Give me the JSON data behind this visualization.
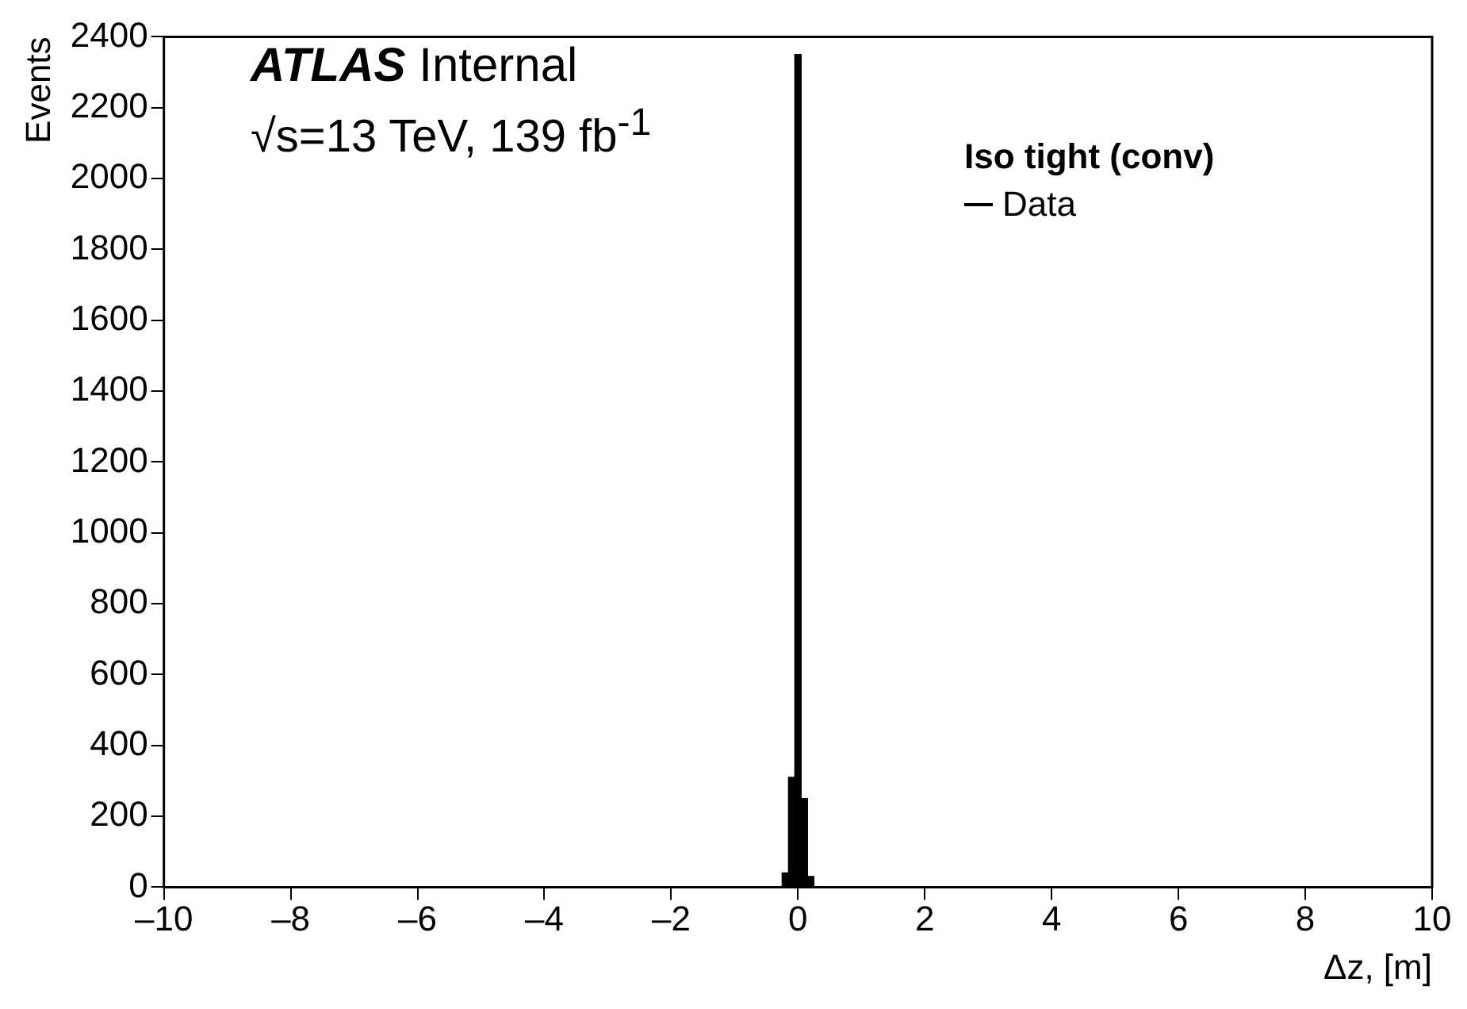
{
  "chart_data": {
    "type": "histogram",
    "xlabel": "Δz, [m]",
    "ylabel": "Events",
    "legend_title": "Iso tight (conv)",
    "legend": "top right",
    "grid": false,
    "annotations": [
      "ATLAS",
      "Internal",
      "√s=13 TeV, 139 fb$^{-1}$"
    ],
    "bins": [
      -0.25,
      -0.15,
      -0.05,
      0.05,
      0.15,
      0.25
    ],
    "series": [
      {
        "name": "Data",
        "color": "#000000",
        "values": [
          40,
          310,
          2350,
          250,
          30
        ]
      }
    ],
    "xlim": [
      -10,
      10
    ],
    "xticks": [
      {
        "value": -10,
        "label": "–10"
      },
      {
        "value": -8,
        "label": "–8"
      },
      {
        "value": -6,
        "label": "–6"
      },
      {
        "value": -4,
        "label": "–4"
      },
      {
        "value": -2,
        "label": "–2"
      },
      0,
      2,
      4,
      6,
      8,
      10
    ],
    "ylim": [
      0,
      2400
    ],
    "yticks": [
      0,
      200,
      400,
      600,
      800,
      1000,
      1200,
      1400,
      1600,
      1800,
      2000,
      2200,
      2400
    ]
  }
}
